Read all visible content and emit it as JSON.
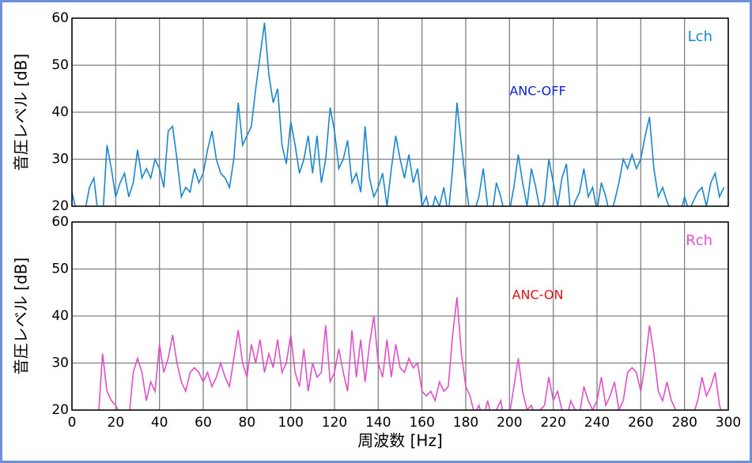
{
  "chart_data": [
    {
      "type": "line",
      "ylabel": "音圧レベル [dB]",
      "annotation": "ANC-OFF",
      "annotation_color": "#0a1fd0",
      "xlim": [
        0,
        300
      ],
      "xticks": [
        0,
        20,
        40,
        60,
        80,
        100,
        120,
        140,
        160,
        180,
        200,
        220,
        240,
        260,
        280,
        300
      ],
      "ylim": [
        20,
        60
      ],
      "yticks": [
        20,
        30,
        40,
        50,
        60
      ],
      "grid": true,
      "legend": "upper right",
      "x": [
        0,
        2,
        4,
        6,
        8,
        10,
        12,
        14,
        16,
        18,
        20,
        22,
        24,
        26,
        28,
        30,
        32,
        34,
        36,
        38,
        40,
        42,
        44,
        46,
        48,
        50,
        52,
        54,
        56,
        58,
        60,
        62,
        64,
        66,
        68,
        70,
        72,
        74,
        76,
        78,
        80,
        82,
        84,
        86,
        88,
        90,
        92,
        94,
        96,
        98,
        100,
        102,
        104,
        106,
        108,
        110,
        112,
        114,
        116,
        118,
        120,
        122,
        124,
        126,
        128,
        130,
        132,
        134,
        136,
        138,
        140,
        142,
        144,
        146,
        148,
        150,
        152,
        154,
        156,
        158,
        160,
        162,
        164,
        166,
        168,
        170,
        172,
        174,
        176,
        178,
        180,
        182,
        184,
        186,
        188,
        190,
        192,
        194,
        196,
        198,
        200,
        202,
        204,
        206,
        208,
        210,
        212,
        214,
        216,
        218,
        220,
        222,
        224,
        226,
        228,
        230,
        232,
        234,
        236,
        238,
        240,
        242,
        244,
        246,
        248,
        250,
        252,
        254,
        256,
        258,
        260,
        262,
        264,
        266,
        268,
        270,
        272,
        274,
        276,
        278,
        280,
        282,
        284,
        286,
        288,
        290,
        292,
        294,
        296,
        298
      ],
      "series": [
        {
          "name": "Lch",
          "color": "#1a86d0",
          "values": [
            23,
            19,
            18,
            19,
            24,
            26,
            18,
            17,
            33,
            28,
            22,
            25,
            27,
            22,
            25,
            32,
            26,
            28,
            26,
            30,
            28,
            24,
            36,
            37,
            30,
            22,
            24,
            23,
            28,
            25,
            27,
            32,
            36,
            30,
            27,
            26,
            24,
            30,
            42,
            33,
            35,
            37,
            45,
            52,
            59,
            48,
            42,
            45,
            33,
            29,
            38,
            33,
            27,
            30,
            35,
            27,
            35,
            25,
            30,
            41,
            36,
            28,
            30,
            34,
            25,
            27,
            23,
            37,
            26,
            22,
            24,
            27,
            20,
            28,
            35,
            30,
            26,
            31,
            25,
            28,
            20,
            22,
            18,
            22,
            20,
            24,
            18,
            28,
            42,
            33,
            25,
            18,
            19,
            22,
            28,
            20,
            18,
            25,
            22,
            18,
            19,
            24,
            31,
            25,
            20,
            28,
            24,
            19,
            21,
            30,
            25,
            20,
            26,
            29,
            18,
            21,
            23,
            28,
            22,
            24,
            19,
            25,
            22,
            18,
            21,
            25,
            30,
            28,
            31,
            28,
            30,
            35,
            39,
            28,
            22,
            24,
            21,
            19,
            20,
            18,
            22,
            19,
            21,
            23,
            24,
            20,
            25,
            27,
            22,
            24
          ]
        }
      ]
    },
    {
      "type": "line",
      "ylabel": "音圧レベル [dB]",
      "xlabel": "周波数 [Hz]",
      "annotation": "ANC-ON",
      "annotation_color": "#e01010",
      "xlim": [
        0,
        300
      ],
      "xticks": [
        0,
        20,
        40,
        60,
        80,
        100,
        120,
        140,
        160,
        180,
        200,
        220,
        240,
        260,
        280,
        300
      ],
      "ylim": [
        20,
        60
      ],
      "yticks": [
        20,
        30,
        40,
        50,
        60
      ],
      "grid": true,
      "legend": "upper right",
      "x": [
        0,
        2,
        4,
        6,
        8,
        10,
        12,
        14,
        16,
        18,
        20,
        22,
        24,
        26,
        28,
        30,
        32,
        34,
        36,
        38,
        40,
        42,
        44,
        46,
        48,
        50,
        52,
        54,
        56,
        58,
        60,
        62,
        64,
        66,
        68,
        70,
        72,
        74,
        76,
        78,
        80,
        82,
        84,
        86,
        88,
        90,
        92,
        94,
        96,
        98,
        100,
        102,
        104,
        106,
        108,
        110,
        112,
        114,
        116,
        118,
        120,
        122,
        124,
        126,
        128,
        130,
        132,
        134,
        136,
        138,
        140,
        142,
        144,
        146,
        148,
        150,
        152,
        154,
        156,
        158,
        160,
        162,
        164,
        166,
        168,
        170,
        172,
        174,
        176,
        178,
        180,
        182,
        184,
        186,
        188,
        190,
        192,
        194,
        196,
        198,
        200,
        202,
        204,
        206,
        208,
        210,
        212,
        214,
        216,
        218,
        220,
        222,
        224,
        226,
        228,
        230,
        232,
        234,
        236,
        238,
        240,
        242,
        244,
        246,
        248,
        250,
        252,
        254,
        256,
        258,
        260,
        262,
        264,
        266,
        268,
        270,
        272,
        274,
        276,
        278,
        280,
        282,
        284,
        286,
        288,
        290,
        292,
        294,
        296,
        298
      ],
      "series": [
        {
          "name": "Rch",
          "color": "#e050c8",
          "values": [
            15,
            15,
            15,
            15,
            15,
            15,
            18,
            32,
            24,
            22,
            21,
            19,
            20,
            18,
            28,
            31,
            28,
            22,
            26,
            24,
            34,
            28,
            31,
            36,
            30,
            26,
            24,
            28,
            29,
            28,
            26,
            28,
            25,
            27,
            30,
            27,
            25,
            31,
            37,
            30,
            27,
            34,
            30,
            35,
            28,
            32,
            29,
            35,
            28,
            30,
            36,
            28,
            25,
            33,
            24,
            30,
            27,
            28,
            38,
            26,
            28,
            33,
            28,
            24,
            37,
            27,
            35,
            26,
            34,
            40,
            30,
            27,
            35,
            27,
            34,
            29,
            28,
            31,
            29,
            30,
            24,
            23,
            24,
            22,
            26,
            24,
            25,
            36,
            44,
            32,
            25,
            23,
            19,
            21,
            18,
            22,
            18,
            20,
            22,
            17,
            19,
            25,
            31,
            24,
            20,
            21,
            18,
            20,
            21,
            27,
            22,
            24,
            20,
            18,
            22,
            20,
            19,
            25,
            22,
            20,
            22,
            27,
            21,
            23,
            26,
            20,
            22,
            28,
            29,
            28,
            24,
            30,
            38,
            32,
            24,
            22,
            26,
            22,
            20,
            19,
            18,
            18,
            19,
            22,
            27,
            23,
            25,
            28,
            21,
            18
          ]
        }
      ]
    }
  ]
}
